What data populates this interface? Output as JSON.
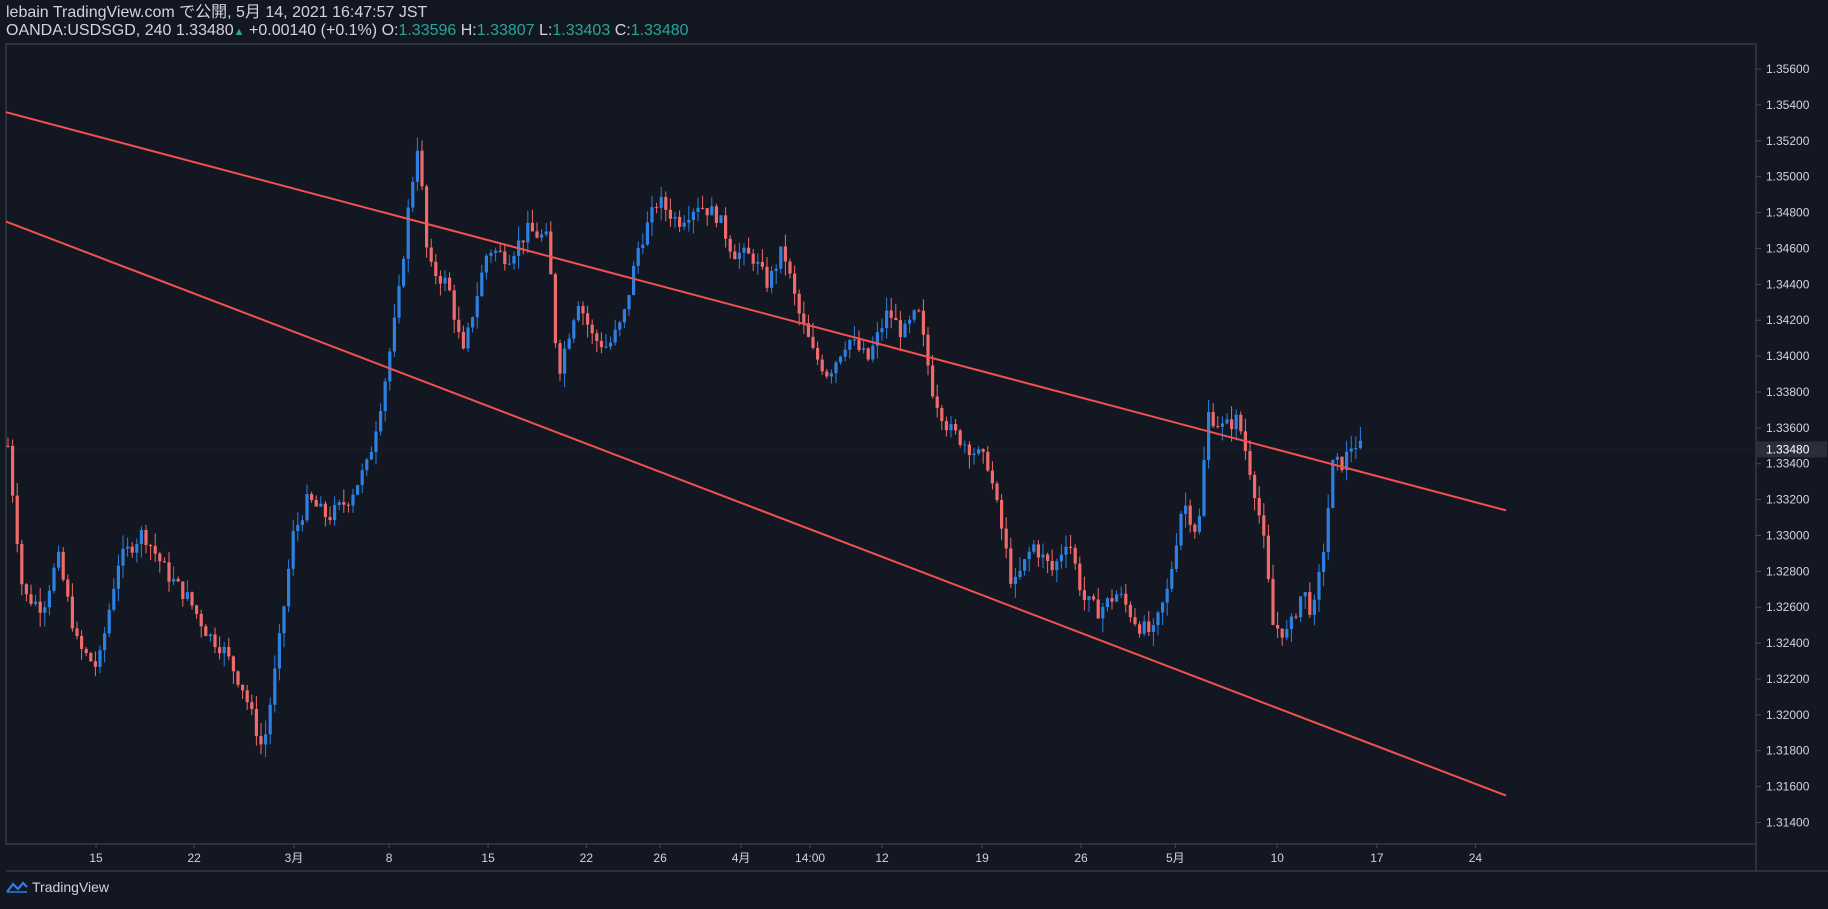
{
  "header": {
    "line1": "lebain TradingView.com で公開, 5月 14, 2021 16:47:57 JST",
    "symbol": "OANDA:USDSGD, 240 1.33480",
    "change_arrow": "▲",
    "change": "+0.00140 (+0.1%)",
    "o_label": "O:",
    "o_value": "1.33596",
    "h_label": "H:",
    "h_value": "1.33807",
    "l_label": "L:",
    "l_value": "1.33403",
    "c_label": "C:",
    "c_value": "1.33480"
  },
  "brand": {
    "logo_icon": "tradingview-logo-icon",
    "label": "TradingView"
  },
  "colors": {
    "background": "#131722",
    "up": "#2d7fe0",
    "down": "#ef6a6a",
    "trendline": "#f0524f",
    "grid_text": "#d1d4dc",
    "axis_line": "#454a55",
    "value_positive": "#26a69a"
  },
  "chart_data": {
    "type": "candlestick",
    "symbol": "OANDA:USDSGD",
    "interval": "240",
    "last_price": "1.33480",
    "ylim": [
      1.3128,
      1.3574
    ],
    "y_ticks": [
      "1.35600",
      "1.35400",
      "1.35200",
      "1.35000",
      "1.34800",
      "1.34600",
      "1.34400",
      "1.34200",
      "1.34000",
      "1.33800",
      "1.33600",
      "1.33400",
      "1.33200",
      "1.33000",
      "1.32800",
      "1.32600",
      "1.32400",
      "1.32200",
      "1.32000",
      "1.31800",
      "1.31600",
      "1.31400"
    ],
    "x_ticks": [
      "15",
      "22",
      "3月",
      "8",
      "15",
      "22",
      "26",
      "4月",
      "14:00",
      "12",
      "19",
      "26",
      "5月",
      "10",
      "17",
      "24"
    ],
    "series": [
      {
        "anchors": [
          [
            0,
            1.335
          ],
          [
            15,
            1.3267
          ],
          [
            35,
            1.326
          ],
          [
            50,
            1.3288
          ],
          [
            70,
            1.3238
          ],
          [
            90,
            1.3226
          ],
          [
            110,
            1.3285
          ],
          [
            135,
            1.3302
          ],
          [
            160,
            1.3278
          ],
          [
            180,
            1.3265
          ],
          [
            200,
            1.3245
          ],
          [
            215,
            1.3237
          ],
          [
            235,
            1.3215
          ],
          [
            255,
            1.318
          ],
          [
            270,
            1.3235
          ],
          [
            285,
            1.33
          ],
          [
            300,
            1.332
          ],
          [
            320,
            1.331
          ],
          [
            340,
            1.332
          ],
          [
            360,
            1.334
          ],
          [
            375,
            1.338
          ],
          [
            390,
            1.343
          ],
          [
            400,
            1.348
          ],
          [
            410,
            1.352
          ],
          [
            420,
            1.345
          ],
          [
            440,
            1.344
          ],
          [
            455,
            1.34
          ],
          [
            465,
            1.3425
          ],
          [
            480,
            1.346
          ],
          [
            500,
            1.3455
          ],
          [
            520,
            1.347
          ],
          [
            540,
            1.3465
          ],
          [
            550,
            1.339
          ],
          [
            570,
            1.3432
          ],
          [
            585,
            1.341
          ],
          [
            600,
            1.3405
          ],
          [
            615,
            1.342
          ],
          [
            630,
            1.346
          ],
          [
            650,
            1.3487
          ],
          [
            670,
            1.3475
          ],
          [
            690,
            1.3485
          ],
          [
            710,
            1.3478
          ],
          [
            725,
            1.3458
          ],
          [
            745,
            1.3455
          ],
          [
            760,
            1.344
          ],
          [
            775,
            1.346
          ],
          [
            790,
            1.3425
          ],
          [
            805,
            1.3402
          ],
          [
            820,
            1.339
          ],
          [
            840,
            1.341
          ],
          [
            860,
            1.3398
          ],
          [
            880,
            1.3425
          ],
          [
            895,
            1.3412
          ],
          [
            910,
            1.3425
          ],
          [
            925,
            1.338
          ],
          [
            940,
            1.336
          ],
          [
            960,
            1.335
          ],
          [
            980,
            1.334
          ],
          [
            995,
            1.33
          ],
          [
            1005,
            1.327
          ],
          [
            1025,
            1.3295
          ],
          [
            1045,
            1.328
          ],
          [
            1060,
            1.33
          ],
          [
            1075,
            1.3265
          ],
          [
            1090,
            1.3258
          ],
          [
            1110,
            1.3268
          ],
          [
            1130,
            1.325
          ],
          [
            1145,
            1.3245
          ],
          [
            1160,
            1.327
          ],
          [
            1175,
            1.332
          ],
          [
            1190,
            1.33
          ],
          [
            1200,
            1.3368
          ],
          [
            1215,
            1.336
          ],
          [
            1230,
            1.3365
          ],
          [
            1245,
            1.333
          ],
          [
            1255,
            1.33
          ],
          [
            1265,
            1.325
          ],
          [
            1280,
            1.3245
          ],
          [
            1295,
            1.327
          ],
          [
            1305,
            1.3255
          ],
          [
            1315,
            1.329
          ],
          [
            1325,
            1.334
          ],
          [
            1335,
            1.334
          ],
          [
            1345,
            1.3352
          ],
          [
            1355,
            1.3348
          ]
        ]
      }
    ],
    "trendlines": [
      {
        "name": "upper-channel",
        "from": [
          0,
          1.3536
        ],
        "to": [
          1500,
          1.3314
        ]
      },
      {
        "name": "lower-channel",
        "from": [
          0,
          1.3475
        ],
        "to": [
          1500,
          1.3155
        ]
      }
    ],
    "grid": false
  }
}
